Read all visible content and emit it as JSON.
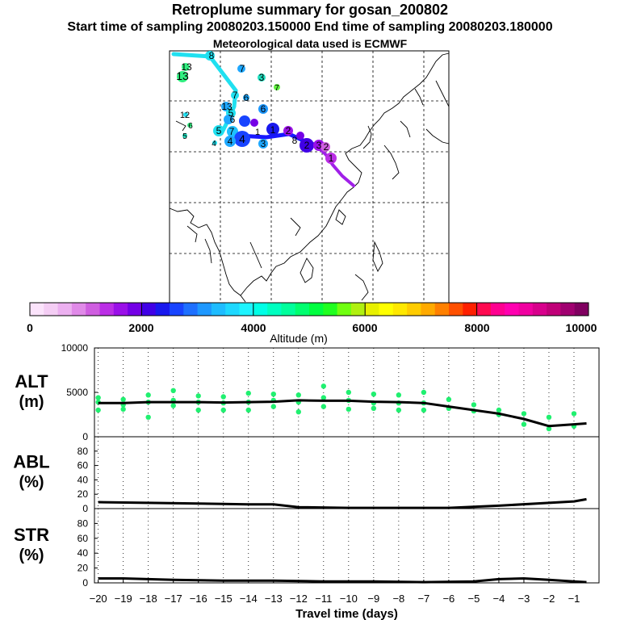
{
  "header": {
    "title": "Retroplume summary for gosan_200802",
    "sampling": "Start time of sampling 20080203.150000     End time of sampling 20080203.180000",
    "met": "Meteorological data used is ECMWF"
  },
  "colorbar": {
    "label": "Altitude (m)",
    "min": 0,
    "max": 10000,
    "tick_labels": [
      "0",
      "2000",
      "4000",
      "6000",
      "8000",
      "10000"
    ],
    "colors": [
      "#fbe3fb",
      "#f4cdf4",
      "#ecb0f0",
      "#e08ae8",
      "#cf5ee0",
      "#bb2ee6",
      "#9a10e8",
      "#7400e6",
      "#4000e6",
      "#1818ee",
      "#1844ff",
      "#1e70ff",
      "#1e98ff",
      "#1ebcff",
      "#1ed8ff",
      "#1ef4ff",
      "#00ffe6",
      "#00ffc0",
      "#00ff9c",
      "#00ff70",
      "#00ff40",
      "#20ff20",
      "#70ff10",
      "#b0f010",
      "#e8f000",
      "#ffff00",
      "#ffe800",
      "#ffcc00",
      "#ffaa00",
      "#ff8000",
      "#ff5000",
      "#ff2000",
      "#ff0a50",
      "#ff0090",
      "#ff00b0",
      "#f000a0",
      "#d8008c",
      "#c00078",
      "#a00070",
      "#800060"
    ]
  },
  "map": {
    "labels": [
      "8",
      "8",
      "7",
      "3",
      "13",
      "13",
      "7",
      "7",
      "6",
      "6",
      "13",
      "5",
      "6",
      "12",
      "6",
      "5",
      "5",
      "7",
      "4",
      "4",
      "1",
      "4",
      "3",
      "1",
      "2",
      "8",
      "2",
      "3",
      "2",
      "1"
    ],
    "colors": {
      "cyan": "#20e0f0",
      "blue": "#1818ff",
      "purple": "#a020e8",
      "green": "#30f080"
    }
  },
  "chart_data": [
    {
      "type": "line",
      "name": "ALT",
      "title": "ALT",
      "ylabel": "(m)",
      "ylim": [
        0,
        10000
      ],
      "yticks": [
        0,
        5000,
        10000
      ],
      "x": [
        -20,
        -19,
        -18,
        -17,
        -16,
        -15,
        -14,
        -13,
        -12,
        -11,
        -10,
        -9,
        -8,
        -7,
        -6,
        -5,
        -4,
        -3,
        -2,
        -1,
        -0.5
      ],
      "series": [
        {
          "name": "mean altitude",
          "values": [
            3800,
            3800,
            3900,
            3900,
            3900,
            3850,
            3900,
            3950,
            4100,
            4050,
            4050,
            3950,
            3900,
            3800,
            3400,
            3000,
            2600,
            2000,
            1200,
            1400,
            1500
          ]
        }
      ],
      "scatter": {
        "x": [
          -20,
          -20,
          -20,
          -19,
          -19,
          -19,
          -18,
          -18,
          -18,
          -17,
          -17,
          -17,
          -16,
          -16,
          -16,
          -15,
          -15,
          -15,
          -14,
          -14,
          -14,
          -13,
          -13,
          -13,
          -12,
          -12,
          -12,
          -11,
          -11,
          -11,
          -10,
          -10,
          -10,
          -9,
          -9,
          -9,
          -8,
          -8,
          -8,
          -7,
          -7,
          -7,
          -6,
          -6,
          -5,
          -5,
          -4,
          -4,
          -3,
          -3,
          -2,
          -2,
          -1,
          -1
        ],
        "values": [
          4400,
          3900,
          3000,
          4200,
          3600,
          3100,
          4700,
          3900,
          2200,
          5200,
          4100,
          3500,
          4600,
          3900,
          3000,
          4500,
          3800,
          3000,
          4900,
          3900,
          3000,
          4800,
          4100,
          3400,
          4700,
          3900,
          2800,
          5700,
          4400,
          3400,
          5000,
          4100,
          3100,
          4800,
          3800,
          3200,
          4700,
          3800,
          3000,
          5000,
          3800,
          3000,
          4200,
          3200,
          3600,
          2900,
          3000,
          2500,
          2600,
          1400,
          2200,
          900,
          2600,
          1200
        ]
      },
      "xlabel": ""
    },
    {
      "type": "line",
      "name": "ABL",
      "title": "ABL",
      "ylabel": "(%)",
      "ylim": [
        0,
        100
      ],
      "yticks": [
        0,
        20,
        40,
        60,
        80
      ],
      "x": [
        -20,
        -18,
        -16,
        -14,
        -13,
        -12,
        -10,
        -8,
        -6,
        -4,
        -2,
        -1,
        -0.5
      ],
      "series": [
        {
          "name": "ABL",
          "values": [
            9,
            8,
            7,
            6,
            6,
            2,
            1,
            1,
            1,
            4,
            8,
            10,
            13
          ]
        }
      ],
      "xlabel": ""
    },
    {
      "type": "line",
      "name": "STR",
      "title": "STR",
      "ylabel": "(%)",
      "ylim": [
        0,
        100
      ],
      "yticks": [
        0,
        20,
        40,
        60,
        80
      ],
      "x": [
        -20,
        -19,
        -17,
        -15,
        -13,
        -11,
        -9,
        -7,
        -5,
        -4,
        -3,
        -2,
        -1,
        -0.5
      ],
      "series": [
        {
          "name": "STR",
          "values": [
            6,
            6,
            4,
            3,
            3,
            2,
            2,
            1,
            2,
            5,
            6,
            4,
            2,
            1
          ]
        }
      ],
      "xticks": [
        -20,
        -19,
        -18,
        -17,
        -16,
        -15,
        -14,
        -13,
        -12,
        -11,
        -10,
        -9,
        -8,
        -7,
        -6,
        -5,
        -4,
        -3,
        -2,
        -1
      ],
      "xlabel": "Travel time (days)"
    }
  ]
}
